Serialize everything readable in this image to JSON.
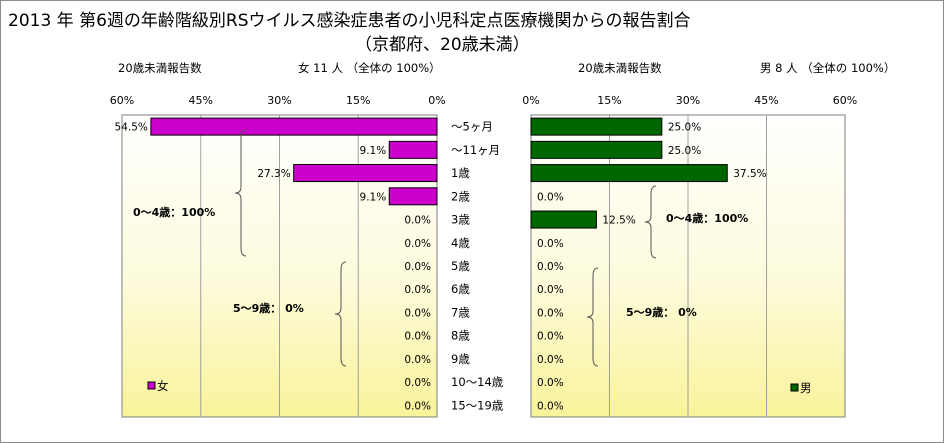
{
  "title": "2013 年 第6週の年齢階級別RSウイルス感染症患者の小児科定点医療機関からの報告割合",
  "subtitle": "（京都府、20歳未満）",
  "chart_data": [
    {
      "type": "bar",
      "orientation": "horizontal",
      "direction": "right-to-left",
      "header_label": "20歳未満報告数",
      "header_total": "女  11 人 （全体の   100%）",
      "xlim": [
        0,
        60
      ],
      "xticks": [
        "60%",
        "45%",
        "30%",
        "15%",
        "0%"
      ],
      "categories": [
        "～5ヶ月",
        "～11ヶ月",
        "1歳",
        "2歳",
        "3歳",
        "4歳",
        "5歳",
        "6歳",
        "7歳",
        "8歳",
        "9歳",
        "10～14歳",
        "15～19歳"
      ],
      "values": [
        54.5,
        9.1,
        27.3,
        9.1,
        0,
        0,
        0,
        0,
        0,
        0,
        0,
        0,
        0
      ],
      "value_labels": [
        "54.5%",
        "9.1%",
        "27.3%",
        "9.1%",
        "0.0%",
        "0.0%",
        "0.0%",
        "0.0%",
        "0.0%",
        "0.0%",
        "0.0%",
        "0.0%",
        "0.0%"
      ],
      "legend": "女",
      "legend_position": "bottom-left",
      "color": "#cc00cc",
      "grid": true,
      "annotations": [
        "0～4歳：100%",
        "5～9歳：  0%"
      ]
    },
    {
      "type": "bar",
      "orientation": "horizontal",
      "direction": "left-to-right",
      "header_label": "20歳未満報告数",
      "header_total": "男   8 人 （全体の   100%）",
      "xlim": [
        0,
        60
      ],
      "xticks": [
        "0%",
        "15%",
        "30%",
        "45%",
        "60%"
      ],
      "categories": [
        "～5ヶ月",
        "～11ヶ月",
        "1歳",
        "2歳",
        "3歳",
        "4歳",
        "5歳",
        "6歳",
        "7歳",
        "8歳",
        "9歳",
        "10～14歳",
        "15～19歳"
      ],
      "values": [
        25.0,
        25.0,
        37.5,
        0,
        12.5,
        0,
        0,
        0,
        0,
        0,
        0,
        0,
        0
      ],
      "value_labels": [
        "25.0%",
        "25.0%",
        "37.5%",
        "0.0%",
        "12.5%",
        "0.0%",
        "0.0%",
        "0.0%",
        "0.0%",
        "0.0%",
        "0.0%",
        "0.0%",
        "0.0%"
      ],
      "legend": "男",
      "legend_position": "bottom-right",
      "color": "#006600",
      "grid": true,
      "annotations": [
        "0～4歳：100%",
        "5～9歳：  0%"
      ]
    }
  ]
}
